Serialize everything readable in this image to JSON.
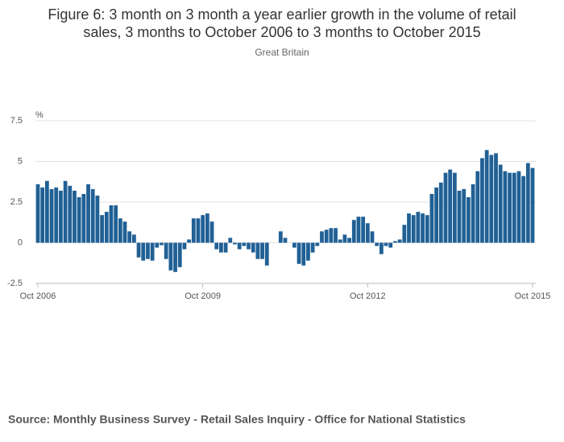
{
  "chart_data": {
    "type": "bar",
    "title": [
      "Figure 6: 3 month on 3 month a year earlier growth in the volume of retail",
      "sales, 3 months to October 2006 to 3 months to October 2015"
    ],
    "subtitle": "Great Britain",
    "y_label": "%",
    "source": "Source: Monthly Business Survey - Retail Sales Inquiry - Office for National Statistics",
    "color": "#206095",
    "grid": true,
    "ylim": [
      -2.5,
      7.5
    ],
    "yticks": [
      -2.5,
      0,
      2.5,
      5,
      7.5
    ],
    "categories": [
      "Oct 2006",
      null,
      null,
      null,
      null,
      null,
      null,
      null,
      null,
      null,
      null,
      null,
      null,
      null,
      null,
      null,
      null,
      null,
      null,
      null,
      null,
      null,
      null,
      null,
      null,
      null,
      null,
      null,
      null,
      null,
      null,
      null,
      null,
      null,
      null,
      null,
      "Oct 2009",
      null,
      null,
      null,
      null,
      null,
      null,
      null,
      null,
      null,
      null,
      null,
      null,
      null,
      null,
      null,
      null,
      null,
      null,
      null,
      null,
      null,
      null,
      null,
      null,
      null,
      null,
      null,
      null,
      null,
      null,
      null,
      null,
      null,
      null,
      null,
      "Oct 2012",
      null,
      null,
      null,
      null,
      null,
      null,
      null,
      null,
      null,
      null,
      null,
      null,
      null,
      null,
      null,
      null,
      null,
      null,
      null,
      null,
      null,
      null,
      null,
      null,
      null,
      null,
      null,
      null,
      null,
      null,
      null,
      null,
      null,
      null,
      null,
      "Oct 2015"
    ],
    "values": [
      3.6,
      3.4,
      3.8,
      3.3,
      3.4,
      3.2,
      3.8,
      3.5,
      3.2,
      2.8,
      3.0,
      3.6,
      3.3,
      2.9,
      1.7,
      1.9,
      2.3,
      2.3,
      1.5,
      1.3,
      0.7,
      0.5,
      -0.9,
      -1.1,
      -1.0,
      -1.1,
      -0.3,
      -0.15,
      -1.0,
      -1.7,
      -1.8,
      -1.5,
      -0.4,
      0.2,
      1.5,
      1.5,
      1.7,
      1.8,
      1.3,
      -0.4,
      -0.6,
      -0.6,
      0.3,
      -0.1,
      -0.4,
      -0.2,
      -0.4,
      -0.6,
      -1.0,
      -1.0,
      -1.4,
      0,
      0,
      0.7,
      0.3,
      0,
      -0.3,
      -1.3,
      -1.4,
      -1.1,
      -0.6,
      -0.2,
      0.7,
      0.8,
      0.9,
      0.9,
      0.2,
      0.5,
      0.3,
      1.4,
      1.6,
      1.6,
      1.2,
      0.7,
      -0.2,
      -0.7,
      -0.2,
      -0.3,
      0.1,
      0.2,
      1.1,
      1.8,
      1.7,
      1.9,
      1.8,
      1.7,
      3.0,
      3.4,
      3.7,
      4.3,
      4.5,
      4.3,
      3.2,
      3.3,
      2.8,
      3.6,
      4.4,
      5.2,
      5.7,
      5.4,
      5.5,
      4.8,
      4.4,
      4.3,
      4.3,
      4.4,
      4.1,
      4.9,
      4.6
    ]
  }
}
